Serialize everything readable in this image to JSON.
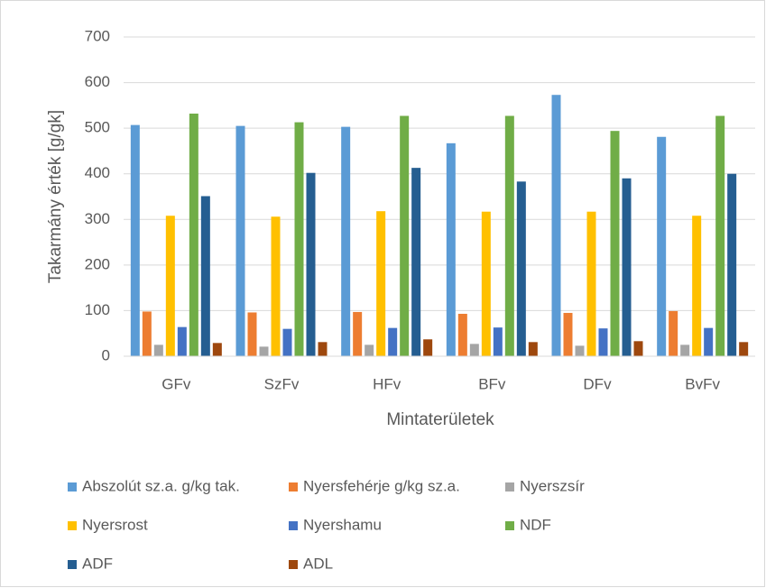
{
  "chart_data": {
    "type": "bar",
    "y_label": "Takarmány érték [g/gk]",
    "x_label": "Mintaterületek",
    "categories": [
      "GFv",
      "SzFv",
      "HFv",
      "BFv",
      "DFv",
      "BvFv"
    ],
    "series": [
      {
        "name": "Abszolút sz.a. g/kg tak.",
        "color": "#5b9bd5",
        "values": [
          507,
          505,
          503,
          467,
          573,
          481
        ]
      },
      {
        "name": "Nyersfehérje g/kg sz.a.",
        "color": "#ed7d31",
        "values": [
          98,
          96,
          97,
          93,
          95,
          99
        ]
      },
      {
        "name": "Nyerszsír",
        "color": "#a5a5a5",
        "values": [
          25,
          21,
          25,
          27,
          23,
          25
        ]
      },
      {
        "name": "Nyersrost",
        "color": "#ffc000",
        "values": [
          308,
          306,
          318,
          317,
          317,
          308
        ]
      },
      {
        "name": "Nyershamu",
        "color": "#4472c4",
        "values": [
          64,
          60,
          62,
          63,
          61,
          62
        ]
      },
      {
        "name": "NDF",
        "color": "#70ad47",
        "values": [
          532,
          513,
          527,
          527,
          494,
          527
        ]
      },
      {
        "name": "ADF",
        "color": "#255e91",
        "values": [
          351,
          402,
          413,
          383,
          390,
          400
        ]
      },
      {
        "name": "ADL",
        "color": "#9e480e",
        "values": [
          29,
          31,
          37,
          31,
          33,
          31
        ]
      }
    ],
    "ylim": [
      0,
      700
    ],
    "yticks": [
      0,
      100,
      200,
      300,
      400,
      500,
      600,
      700
    ],
    "grid": true,
    "legend": "bottom"
  }
}
